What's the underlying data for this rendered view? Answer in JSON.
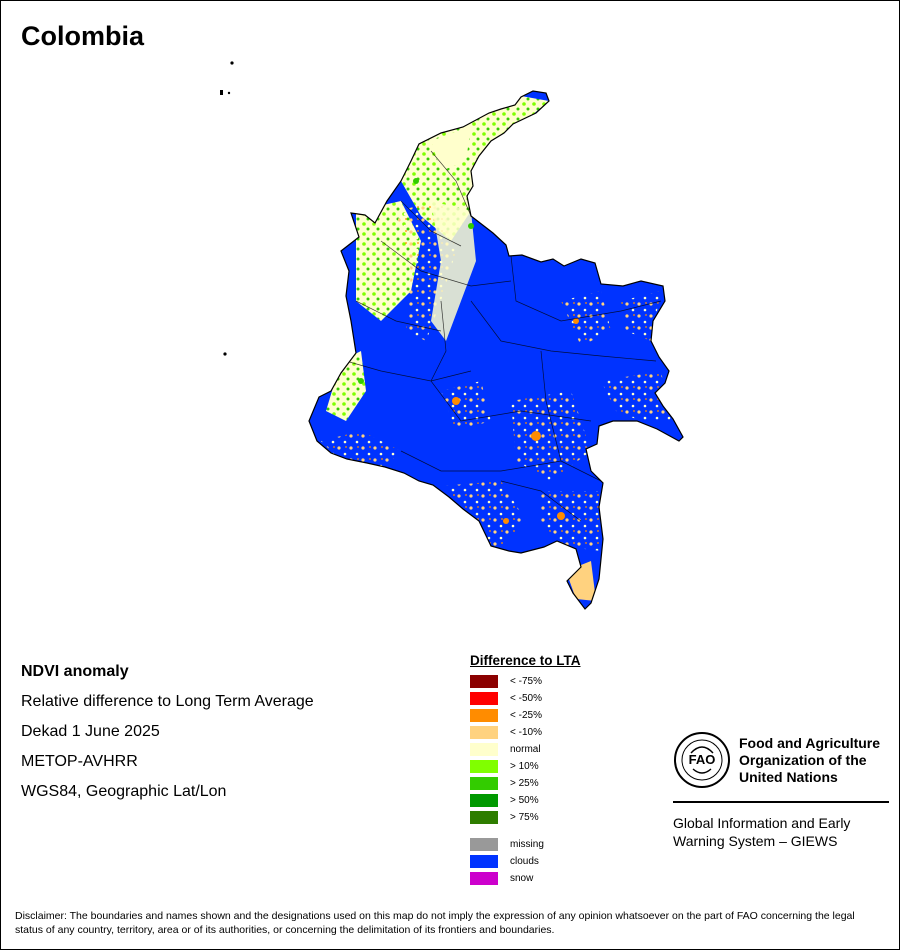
{
  "title": "Colombia",
  "info": {
    "heading": "NDVI anomaly",
    "line1": "Relative difference to Long Term Average",
    "line2": "Dekad 1 June 2025",
    "line3": "METOP-AVHRR",
    "line4": "WGS84, Geographic Lat/Lon"
  },
  "legend": {
    "title": "Difference to LTA",
    "items": [
      {
        "label": "< -75%",
        "color": "#8b0000"
      },
      {
        "label": "< -50%",
        "color": "#ff0000"
      },
      {
        "label": "< -25%",
        "color": "#ff8c00"
      },
      {
        "label": "< -10%",
        "color": "#ffd27f"
      },
      {
        "label": "normal",
        "color": "#ffffcc"
      },
      {
        "label": "> 10%",
        "color": "#80ff00"
      },
      {
        "label": "> 25%",
        "color": "#33cc00"
      },
      {
        "label": "> 50%",
        "color": "#009900"
      },
      {
        "label": "> 75%",
        "color": "#2e7d00"
      }
    ],
    "extra": [
      {
        "label": "missing",
        "color": "#999999"
      },
      {
        "label": "clouds",
        "color": "#0033ff"
      },
      {
        "label": "snow",
        "color": "#cc00cc"
      }
    ]
  },
  "fao": {
    "name_line1": "Food and Agriculture",
    "name_line2": "Organization of the",
    "name_line3": "United Nations",
    "giews_line1": "Global Information and Early",
    "giews_line2": "Warning System – GIEWS"
  },
  "disclaimer": "Disclaimer: The boundaries and names shown and the designations used on this map do not imply the expression of any opinion whatsoever on the part of FAO concerning the legal status of any country, territory, area or of its authorities, or concerning the delimitation of its frontiers and boundaries.",
  "colors": {
    "clouds": "#0033ff",
    "normal": "#ffffcc",
    "minus10": "#ffd27f",
    "minus25": "#ff8c00",
    "plus10": "#80ff00",
    "plus25": "#33cc00"
  }
}
